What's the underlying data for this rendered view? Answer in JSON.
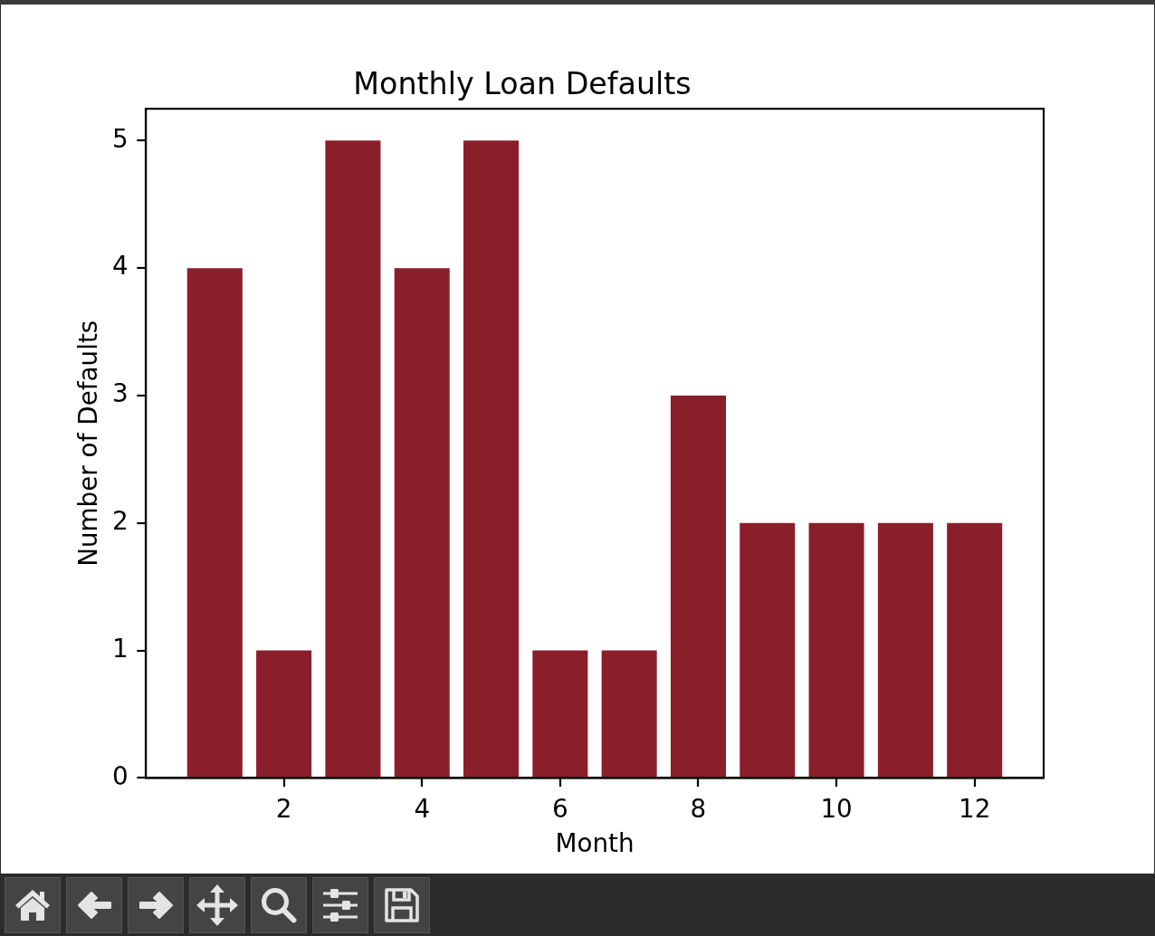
{
  "chart_data": {
    "type": "bar",
    "title": "Monthly Loan Defaults",
    "xlabel": "Month",
    "ylabel": "Number of Defaults",
    "x": [
      1,
      2,
      3,
      4,
      5,
      6,
      7,
      8,
      9,
      10,
      11,
      12
    ],
    "values": [
      4,
      1,
      5,
      4,
      5,
      1,
      1,
      3,
      2,
      2,
      2,
      2
    ],
    "color": "#8b1e2b",
    "xlim": [
      0,
      13
    ],
    "xticks": [
      2,
      4,
      6,
      8,
      10,
      12
    ],
    "ylim": [
      0,
      5.25
    ],
    "yticks": [
      0,
      1,
      2,
      3,
      4,
      5
    ]
  }
}
